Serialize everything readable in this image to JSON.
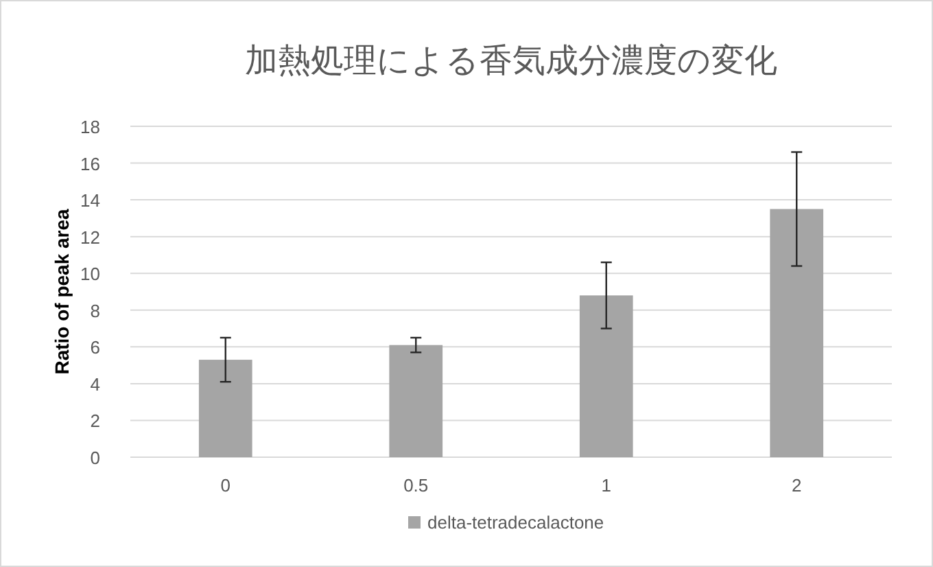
{
  "chart_data": {
    "type": "bar",
    "title": "加熱処理による香気成分濃度の変化",
    "ylabel": "Ratio of peak area",
    "categories": [
      "0",
      "0.5",
      "1",
      "2"
    ],
    "series": [
      {
        "name": "delta-tetradecalactone",
        "color": "#a5a5a5",
        "values": [
          5.3,
          6.1,
          8.8,
          13.5
        ],
        "errors": [
          1.2,
          0.4,
          1.8,
          3.1
        ]
      }
    ],
    "ylim": [
      0,
      18
    ],
    "yticks": [
      0,
      2,
      4,
      6,
      8,
      10,
      12,
      14,
      16,
      18
    ],
    "grid": "y",
    "legend": "bottom"
  }
}
